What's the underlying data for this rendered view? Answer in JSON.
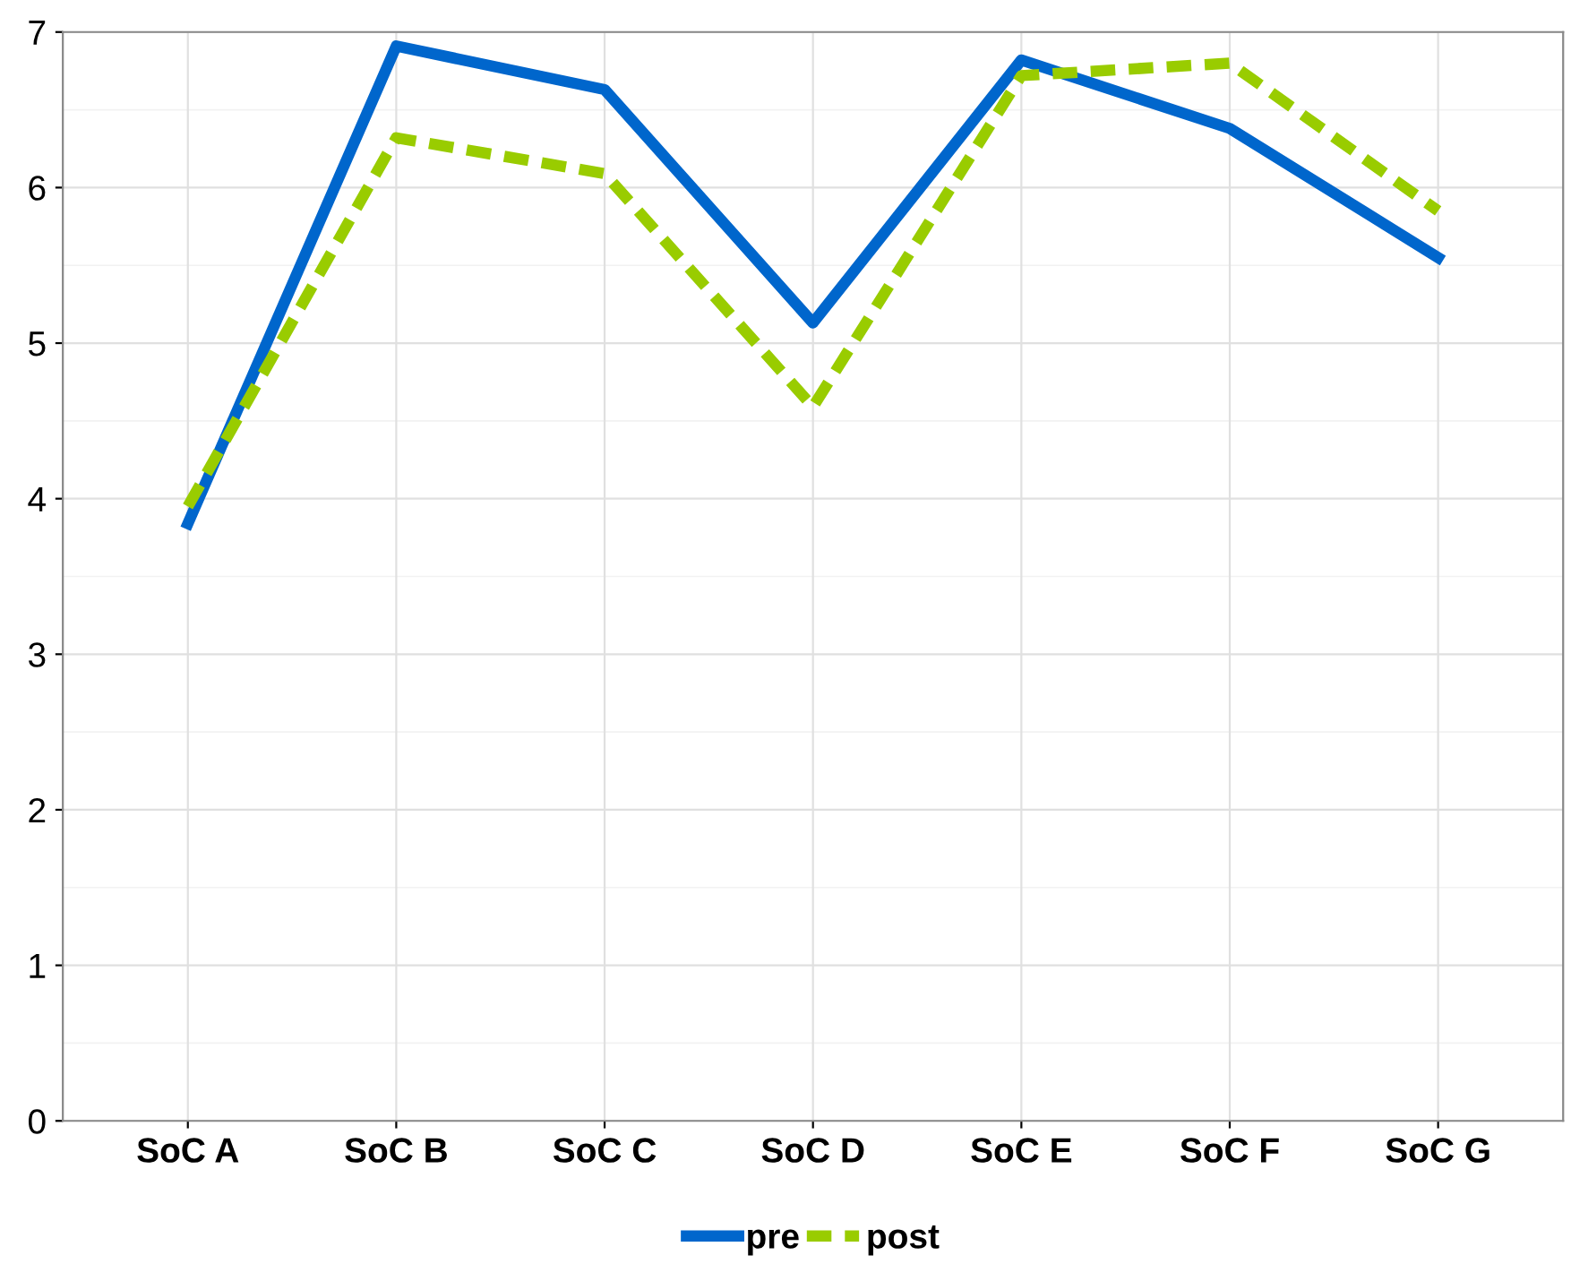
{
  "chart_data": {
    "type": "line",
    "categories": [
      "SoC A",
      "SoC B",
      "SoC C",
      "SoC D",
      "SoC E",
      "SoC F",
      "SoC G"
    ],
    "series": [
      {
        "name": "pre",
        "color": "#0066cc",
        "line_style": "solid",
        "values": [
          3.84,
          6.91,
          6.63,
          5.13,
          6.82,
          6.38,
          5.55
        ]
      },
      {
        "name": "post",
        "color": "#99cc00",
        "line_style": "dashed",
        "values": [
          3.95,
          6.32,
          6.09,
          4.59,
          6.72,
          6.8,
          5.85
        ]
      }
    ],
    "ylim": [
      0,
      7
    ],
    "yticks": [
      0,
      1,
      2,
      3,
      4,
      5,
      6,
      7
    ],
    "grid": true,
    "legend": "bottom",
    "marker": "none"
  }
}
